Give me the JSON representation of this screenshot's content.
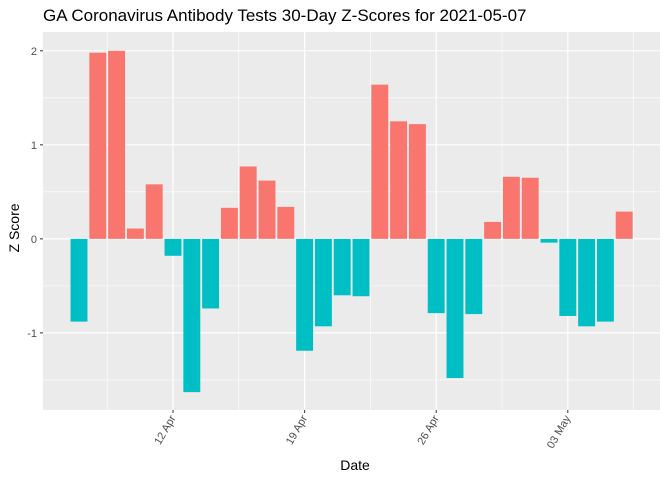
{
  "chart_data": {
    "type": "bar",
    "title": "GA Coronavirus Antibody Tests 30-Day Z-Scores for 2021-05-07",
    "xlabel": "Date",
    "ylabel": "Z Score",
    "x_tick_labels": [
      "12 Apr",
      "19 Apr",
      "26 Apr",
      "03 May"
    ],
    "y_tick_labels": [
      "-1",
      "0",
      "1",
      "2"
    ],
    "ylim": [
      -1.82,
      2.2
    ],
    "grid": true,
    "legend": "none",
    "colors": {
      "positive": "#F8766D",
      "negative": "#00BFC4",
      "panel": "#EBEBEB",
      "grid": "#FFFFFF"
    },
    "categories": [
      "2021-04-07",
      "2021-04-08",
      "2021-04-09",
      "2021-04-10",
      "2021-04-11",
      "2021-04-12",
      "2021-04-13",
      "2021-04-14",
      "2021-04-15",
      "2021-04-16",
      "2021-04-17",
      "2021-04-18",
      "2021-04-19",
      "2021-04-20",
      "2021-04-21",
      "2021-04-22",
      "2021-04-23",
      "2021-04-24",
      "2021-04-25",
      "2021-04-26",
      "2021-04-27",
      "2021-04-28",
      "2021-04-29",
      "2021-04-30",
      "2021-05-01",
      "2021-05-02",
      "2021-05-03",
      "2021-05-04",
      "2021-05-05",
      "2021-05-06"
    ],
    "values": [
      -0.88,
      1.98,
      2.0,
      0.11,
      0.58,
      -0.18,
      -1.63,
      -0.74,
      0.33,
      0.77,
      0.62,
      0.34,
      -1.19,
      -0.93,
      -0.6,
      -0.61,
      1.64,
      1.25,
      1.22,
      -0.79,
      -1.48,
      -0.8,
      0.18,
      0.66,
      0.65,
      -0.04,
      -0.82,
      -0.93,
      -0.88,
      0.29
    ]
  }
}
